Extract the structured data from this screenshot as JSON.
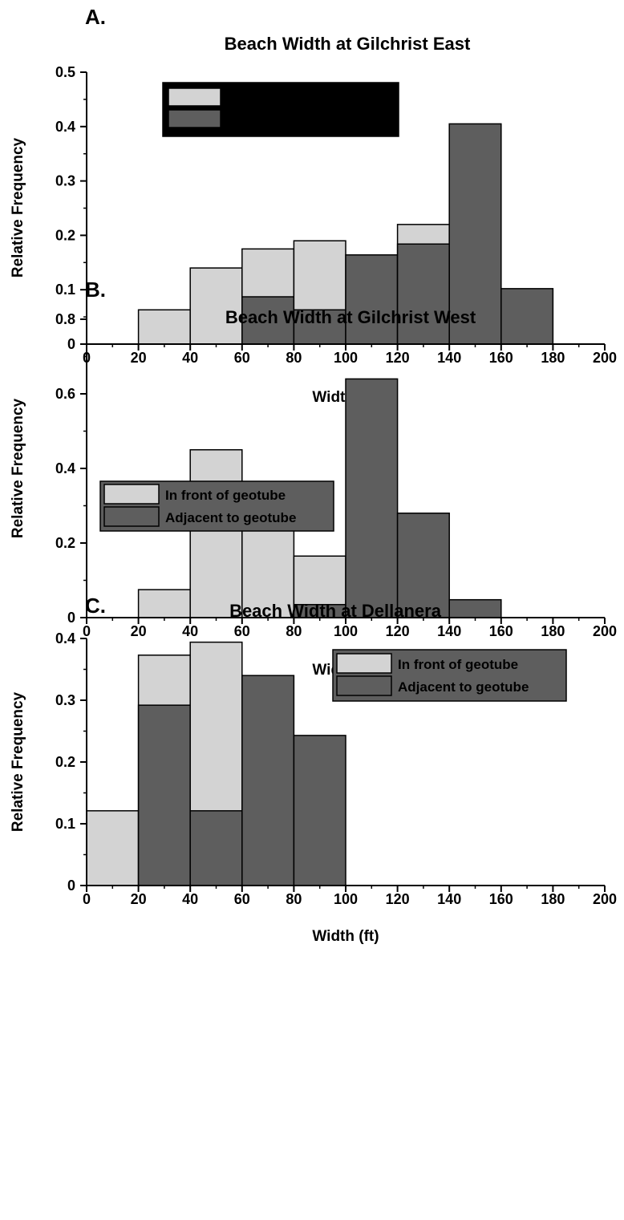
{
  "colors": {
    "front": "#d3d3d3",
    "adjacent": "#5e5e5e",
    "axis": "#000000",
    "legend_box_a": "#000000",
    "legend_box_bc": "#5e5e5e"
  },
  "chart_data": [
    {
      "type": "bar",
      "panel_label": "A.",
      "title": "Beach Width at Gilchrist East",
      "xlabel": "Width (ft)",
      "ylabel": "Relative Frequency",
      "xlim": [
        0,
        200
      ],
      "ylim": [
        0,
        0.5
      ],
      "x_ticks": [
        0,
        20,
        40,
        60,
        80,
        100,
        120,
        140,
        160,
        180,
        200
      ],
      "y_ticks": [
        0,
        0.1,
        0.2,
        0.3,
        0.4,
        0.5
      ],
      "y_tick_labels": [
        "0",
        "0.1",
        "0.2",
        "0.3",
        "0.4",
        "0.5"
      ],
      "bin_edges": [
        0,
        20,
        40,
        60,
        80,
        100,
        120,
        140,
        160,
        180,
        200
      ],
      "legend_position": "top-center",
      "series": [
        {
          "key": "front",
          "name": "",
          "values": [
            0,
            0.063,
            0.14,
            0.175,
            0.19,
            0,
            0.22,
            0,
            0,
            0
          ]
        },
        {
          "key": "adjacent",
          "name": "",
          "values": [
            0,
            0,
            0,
            0.087,
            0.063,
            0.164,
            0.184,
            0.405,
            0.102,
            0
          ]
        }
      ]
    },
    {
      "type": "bar",
      "panel_label": "B.",
      "title": "Beach Width at Gilchrist West",
      "xlabel": "Width (ft)",
      "ylabel": "Relative Frequency",
      "xlim": [
        0,
        200
      ],
      "ylim": [
        0,
        0.8
      ],
      "x_ticks": [
        0,
        20,
        40,
        60,
        80,
        100,
        120,
        140,
        160,
        180,
        200
      ],
      "y_ticks": [
        0,
        0.2,
        0.4,
        0.6,
        0.8
      ],
      "y_tick_labels": [
        "0",
        "0.2",
        "0.4",
        "0.6",
        "0.8"
      ],
      "bin_edges": [
        0,
        20,
        40,
        60,
        80,
        100,
        120,
        140,
        160,
        180,
        200
      ],
      "legend_position": "top-left",
      "series": [
        {
          "key": "front",
          "name": "In front of geotube",
          "values": [
            0,
            0.075,
            0.45,
            0.28,
            0.165,
            0,
            0,
            0,
            0,
            0
          ]
        },
        {
          "key": "adjacent",
          "name": "Adjacent to geotube",
          "values": [
            0,
            0,
            0,
            0,
            0.035,
            0.64,
            0.28,
            0.048,
            0,
            0
          ]
        }
      ]
    },
    {
      "type": "bar",
      "panel_label": "C.",
      "title": "Beach Width at Dellanera",
      "xlabel": "Width (ft)",
      "ylabel": "Relative Frequency",
      "xlim": [
        0,
        200
      ],
      "ylim": [
        0,
        0.4
      ],
      "x_ticks": [
        0,
        20,
        40,
        60,
        80,
        100,
        120,
        140,
        160,
        180,
        200
      ],
      "y_ticks": [
        0,
        0.1,
        0.2,
        0.3,
        0.4
      ],
      "y_tick_labels": [
        "0",
        "0.1",
        "0.2",
        "0.3",
        "0.4"
      ],
      "bin_edges": [
        0,
        20,
        40,
        60,
        80,
        100,
        120,
        140,
        160,
        180,
        200
      ],
      "legend_position": "top-right",
      "series": [
        {
          "key": "front",
          "name": "In front of geotube",
          "values": [
            0.121,
            0.373,
            0.394,
            0,
            0,
            0,
            0,
            0,
            0,
            0
          ]
        },
        {
          "key": "adjacent",
          "name": "Adjacent to geotube",
          "values": [
            0,
            0.292,
            0.121,
            0.34,
            0.243,
            0,
            0,
            0,
            0,
            0
          ]
        }
      ]
    }
  ]
}
